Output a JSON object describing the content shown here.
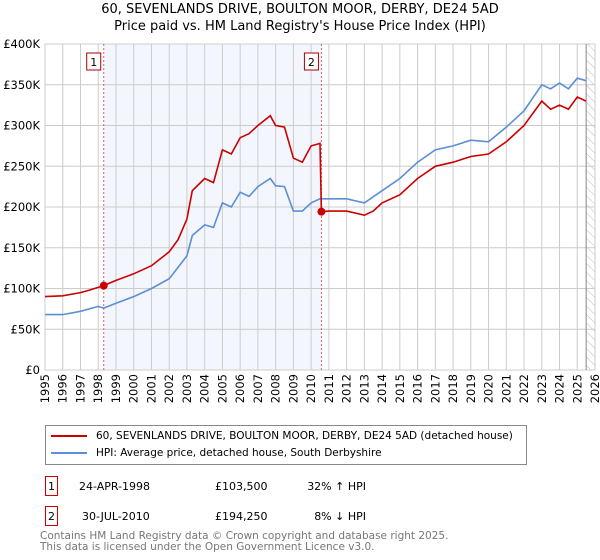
{
  "chart_data": {
    "type": "line",
    "title": "60, SEVENLANDS DRIVE, BOULTON MOOR, DERBY, DE24 5AD",
    "subtitle": "Price paid vs. HM Land Registry's House Price Index (HPI)",
    "xlim": [
      1995,
      2026
    ],
    "ylim": [
      0,
      400000
    ],
    "yticks": [
      {
        "v": 0,
        "label": "£0"
      },
      {
        "v": 50000,
        "label": "£50K"
      },
      {
        "v": 100000,
        "label": "£100K"
      },
      {
        "v": 150000,
        "label": "£150K"
      },
      {
        "v": 200000,
        "label": "£200K"
      },
      {
        "v": 250000,
        "label": "£250K"
      },
      {
        "v": 300000,
        "label": "£300K"
      },
      {
        "v": 350000,
        "label": "£350K"
      },
      {
        "v": 400000,
        "label": "£400K"
      }
    ],
    "xticks": [
      "1995",
      "1996",
      "1997",
      "1998",
      "1999",
      "2000",
      "2001",
      "2002",
      "2003",
      "2004",
      "2005",
      "2006",
      "2007",
      "2008",
      "2009",
      "2010",
      "2011",
      "2012",
      "2013",
      "2014",
      "2015",
      "2016",
      "2017",
      "2018",
      "2019",
      "2020",
      "2021",
      "2022",
      "2023",
      "2024",
      "2025",
      "2026"
    ],
    "grid": true,
    "series": [
      {
        "name": "60, SEVENLANDS DRIVE, BOULTON MOOR, DERBY, DE24 5AD (detached house)",
        "color": "#cc0000",
        "x": [
          1995,
          1996,
          1997,
          1997.5,
          1998.31,
          1999,
          2000,
          2001,
          2002,
          2002.5,
          2003,
          2003.3,
          2004,
          2004.5,
          2005,
          2005.5,
          2006,
          2006.5,
          2007,
          2007.7,
          2008,
          2008.5,
          2009,
          2009.5,
          2010,
          2010.5,
          2010.58,
          2011,
          2012,
          2013,
          2013.5,
          2014,
          2015,
          2016,
          2017,
          2018,
          2019,
          2020,
          2021,
          2022,
          2023,
          2023.5,
          2024,
          2024.5,
          2025,
          2025.5
        ],
        "y": [
          90000,
          91000,
          95000,
          98000,
          103500,
          110000,
          118000,
          128000,
          145000,
          160000,
          185000,
          220000,
          235000,
          230000,
          270000,
          265000,
          285000,
          290000,
          300000,
          312000,
          300000,
          298000,
          260000,
          255000,
          275000,
          278000,
          194250,
          195000,
          195000,
          190000,
          195000,
          205000,
          215000,
          235000,
          250000,
          255000,
          262000,
          265000,
          280000,
          300000,
          330000,
          320000,
          325000,
          320000,
          335000,
          330000
        ]
      },
      {
        "name": "HPI: Average price, detached house, South Derbyshire",
        "color": "#5b8fd4",
        "x": [
          1995,
          1996,
          1997,
          1998,
          1998.31,
          1999,
          2000,
          2001,
          2002,
          2003,
          2003.3,
          2004,
          2004.5,
          2005,
          2005.5,
          2006,
          2006.5,
          2007,
          2007.7,
          2008,
          2008.5,
          2009,
          2009.5,
          2010,
          2010.5,
          2011,
          2012,
          2013,
          2014,
          2015,
          2016,
          2017,
          2018,
          2019,
          2020,
          2021,
          2022,
          2023,
          2023.5,
          2024,
          2024.5,
          2025,
          2025.5
        ],
        "y": [
          68000,
          68000,
          72000,
          78000,
          76000,
          82000,
          90000,
          100000,
          112000,
          140000,
          165000,
          178000,
          175000,
          205000,
          200000,
          218000,
          213000,
          225000,
          235000,
          226000,
          225000,
          195000,
          195000,
          205000,
          210000,
          210000,
          210000,
          205000,
          220000,
          235000,
          255000,
          270000,
          275000,
          282000,
          280000,
          298000,
          318000,
          350000,
          345000,
          352000,
          345000,
          358000,
          355000
        ]
      }
    ],
    "sales": [
      {
        "label": "1",
        "x": 1998.31,
        "date": "24-APR-1998",
        "price": 103500,
        "price_label": "£103,500",
        "hpi": "32% ↑ HPI"
      },
      {
        "label": "2",
        "x": 2010.58,
        "date": "30-JUL-2010",
        "price": 194250,
        "price_label": "£194,250",
        "hpi": "8% ↓ HPI"
      }
    ],
    "forecast_from": 2025.5,
    "legend_placement": "below"
  },
  "footer": {
    "line1": "Contains HM Land Registry data © Crown copyright and database right 2025.",
    "line2": "This data is licensed under the Open Government Licence v3.0."
  }
}
